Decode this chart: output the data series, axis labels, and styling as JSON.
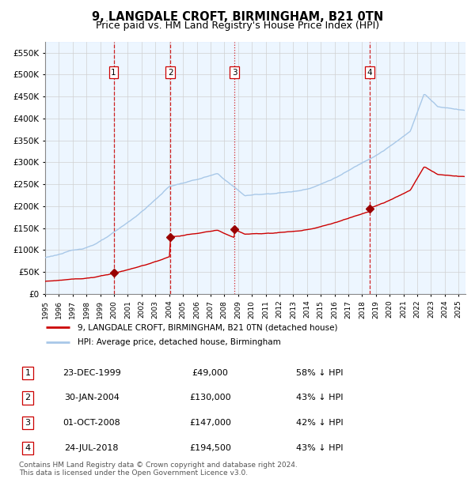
{
  "title": "9, LANGDALE CROFT, BIRMINGHAM, B21 0TN",
  "subtitle": "Price paid vs. HM Land Registry's House Price Index (HPI)",
  "title_fontsize": 10.5,
  "subtitle_fontsize": 9,
  "ylim": [
    0,
    575000
  ],
  "yticks": [
    0,
    50000,
    100000,
    150000,
    200000,
    250000,
    300000,
    350000,
    400000,
    450000,
    500000,
    550000
  ],
  "sale_dates_num": [
    1999.97,
    2004.08,
    2008.75,
    2018.56
  ],
  "sale_prices": [
    49000,
    130000,
    147000,
    194500
  ],
  "sale_labels": [
    "1",
    "2",
    "3",
    "4"
  ],
  "hpi_color": "#a8c8e8",
  "sale_color": "#cc0000",
  "background_region_color": "#ddeeff",
  "legend_sale_label": "9, LANGDALE CROFT, BIRMINGHAM, B21 0TN (detached house)",
  "legend_hpi_label": "HPI: Average price, detached house, Birmingham",
  "table_rows": [
    [
      "1",
      "23-DEC-1999",
      "£49,000",
      "58% ↓ HPI"
    ],
    [
      "2",
      "30-JAN-2004",
      "£130,000",
      "43% ↓ HPI"
    ],
    [
      "3",
      "01-OCT-2008",
      "£147,000",
      "42% ↓ HPI"
    ],
    [
      "4",
      "24-JUL-2018",
      "£194,500",
      "43% ↓ HPI"
    ]
  ],
  "footnote": "Contains HM Land Registry data © Crown copyright and database right 2024.\nThis data is licensed under the Open Government Licence v3.0.",
  "xlim_start": 1995.0,
  "xlim_end": 2025.5
}
